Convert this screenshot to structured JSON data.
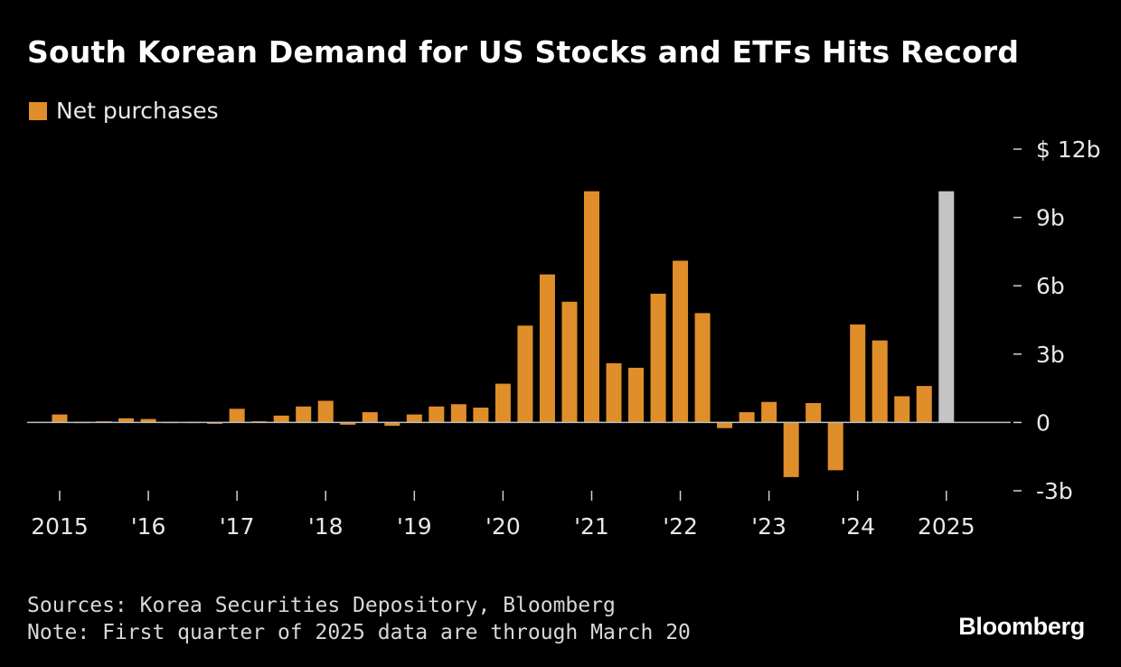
{
  "title": "South Korean Demand for US Stocks and ETFs Hits Record",
  "legend": {
    "label": "Net purchases",
    "color": "#e08e2a"
  },
  "sources": "Sources: Korea Securities Depository, Bloomberg",
  "note": "Note: First quarter of 2025 data are through March 20",
  "brand": "Bloomberg",
  "chart_data": {
    "type": "bar",
    "series": [
      {
        "name": "Net purchases",
        "color": "#e08e2a",
        "highlight_color": "#c4c4c4"
      }
    ],
    "categories": [
      "2015 Q1",
      "2015 Q2",
      "2015 Q3",
      "2015 Q4",
      "2016 Q1",
      "2016 Q2",
      "2016 Q3",
      "2016 Q4",
      "2017 Q1",
      "2017 Q2",
      "2017 Q3",
      "2017 Q4",
      "2018 Q1",
      "2018 Q2",
      "2018 Q3",
      "2018 Q4",
      "2019 Q1",
      "2019 Q2",
      "2019 Q3",
      "2019 Q4",
      "2020 Q1",
      "2020 Q2",
      "2020 Q3",
      "2020 Q4",
      "2021 Q1",
      "2021 Q2",
      "2021 Q3",
      "2021 Q4",
      "2022 Q1",
      "2022 Q2",
      "2022 Q3",
      "2022 Q4",
      "2023 Q1",
      "2023 Q2",
      "2023 Q3",
      "2023 Q4",
      "2024 Q1",
      "2024 Q2",
      "2024 Q3",
      "2024 Q4",
      "2025 Q1"
    ],
    "values": [
      0.35,
      0.03,
      0.05,
      0.18,
      0.15,
      0.03,
      0.03,
      -0.05,
      0.6,
      0.05,
      0.3,
      0.7,
      0.95,
      -0.1,
      0.45,
      -0.15,
      0.35,
      0.7,
      0.8,
      0.65,
      1.7,
      4.25,
      6.5,
      5.3,
      10.15,
      2.6,
      2.4,
      5.65,
      7.1,
      4.8,
      -0.25,
      0.45,
      0.9,
      -2.4,
      0.85,
      -2.1,
      4.3,
      3.6,
      1.15,
      1.6,
      10.15
    ],
    "highlight_index": 40,
    "ylim": [
      -3,
      12
    ],
    "yticks": [
      {
        "value": 12,
        "label": "$ 12b"
      },
      {
        "value": 9,
        "label": "9b"
      },
      {
        "value": 6,
        "label": "6b"
      },
      {
        "value": 3,
        "label": "3b"
      },
      {
        "value": 0,
        "label": "0"
      },
      {
        "value": -3,
        "label": "-3b"
      }
    ],
    "xticks": [
      {
        "index": 0,
        "label": "2015"
      },
      {
        "index": 4,
        "label": "'16"
      },
      {
        "index": 8,
        "label": "'17"
      },
      {
        "index": 12,
        "label": "'18"
      },
      {
        "index": 16,
        "label": "'19"
      },
      {
        "index": 20,
        "label": "'20"
      },
      {
        "index": 24,
        "label": "'21"
      },
      {
        "index": 28,
        "label": "'22"
      },
      {
        "index": 32,
        "label": "'23"
      },
      {
        "index": 36,
        "label": "'24"
      },
      {
        "index": 40,
        "label": "2025"
      }
    ],
    "grid": false,
    "legend_position": "top-left"
  }
}
